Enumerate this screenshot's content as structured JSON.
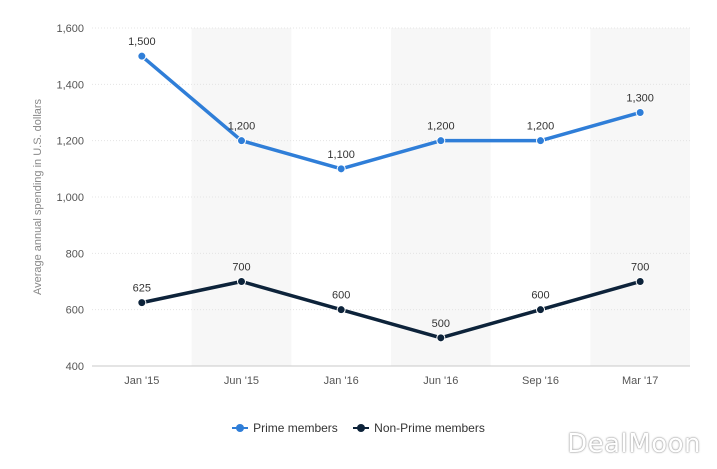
{
  "chart_data": {
    "type": "line",
    "categories": [
      "Jan '15",
      "Jun '15",
      "Jan '16",
      "Jun '16",
      "Sep '16",
      "Mar '17"
    ],
    "series": [
      {
        "name": "Prime members",
        "values": [
          1500,
          1200,
          1100,
          1200,
          1200,
          1300
        ],
        "color": "#2f7ed8"
      },
      {
        "name": "Non-Prime members",
        "values": [
          625,
          700,
          600,
          500,
          600,
          700
        ],
        "color": "#0d233a"
      }
    ],
    "ylabel": "Average annual spending in U.S. dollars",
    "xlabel": "",
    "ylim": [
      400,
      1600
    ],
    "yticks": [
      400,
      600,
      800,
      1000,
      1200,
      1400,
      1600
    ],
    "ytick_labels": [
      "400",
      "600",
      "800",
      "1,000",
      "1,200",
      "1,400",
      "1,600"
    ],
    "data_labels": {
      "Prime members": [
        "1,500",
        "1,200",
        "1,100",
        "1,200",
        "1,200",
        "1,300"
      ],
      "Non-Prime members": [
        "625",
        "700",
        "600",
        "500",
        "600",
        "700"
      ]
    },
    "legend_position": "bottom-center",
    "grid": true
  },
  "legend": {
    "items": [
      {
        "label": "Prime members",
        "color": "#2f7ed8"
      },
      {
        "label": "Non-Prime members",
        "color": "#0d233a"
      }
    ]
  },
  "watermark": {
    "text": "DealMoon"
  }
}
